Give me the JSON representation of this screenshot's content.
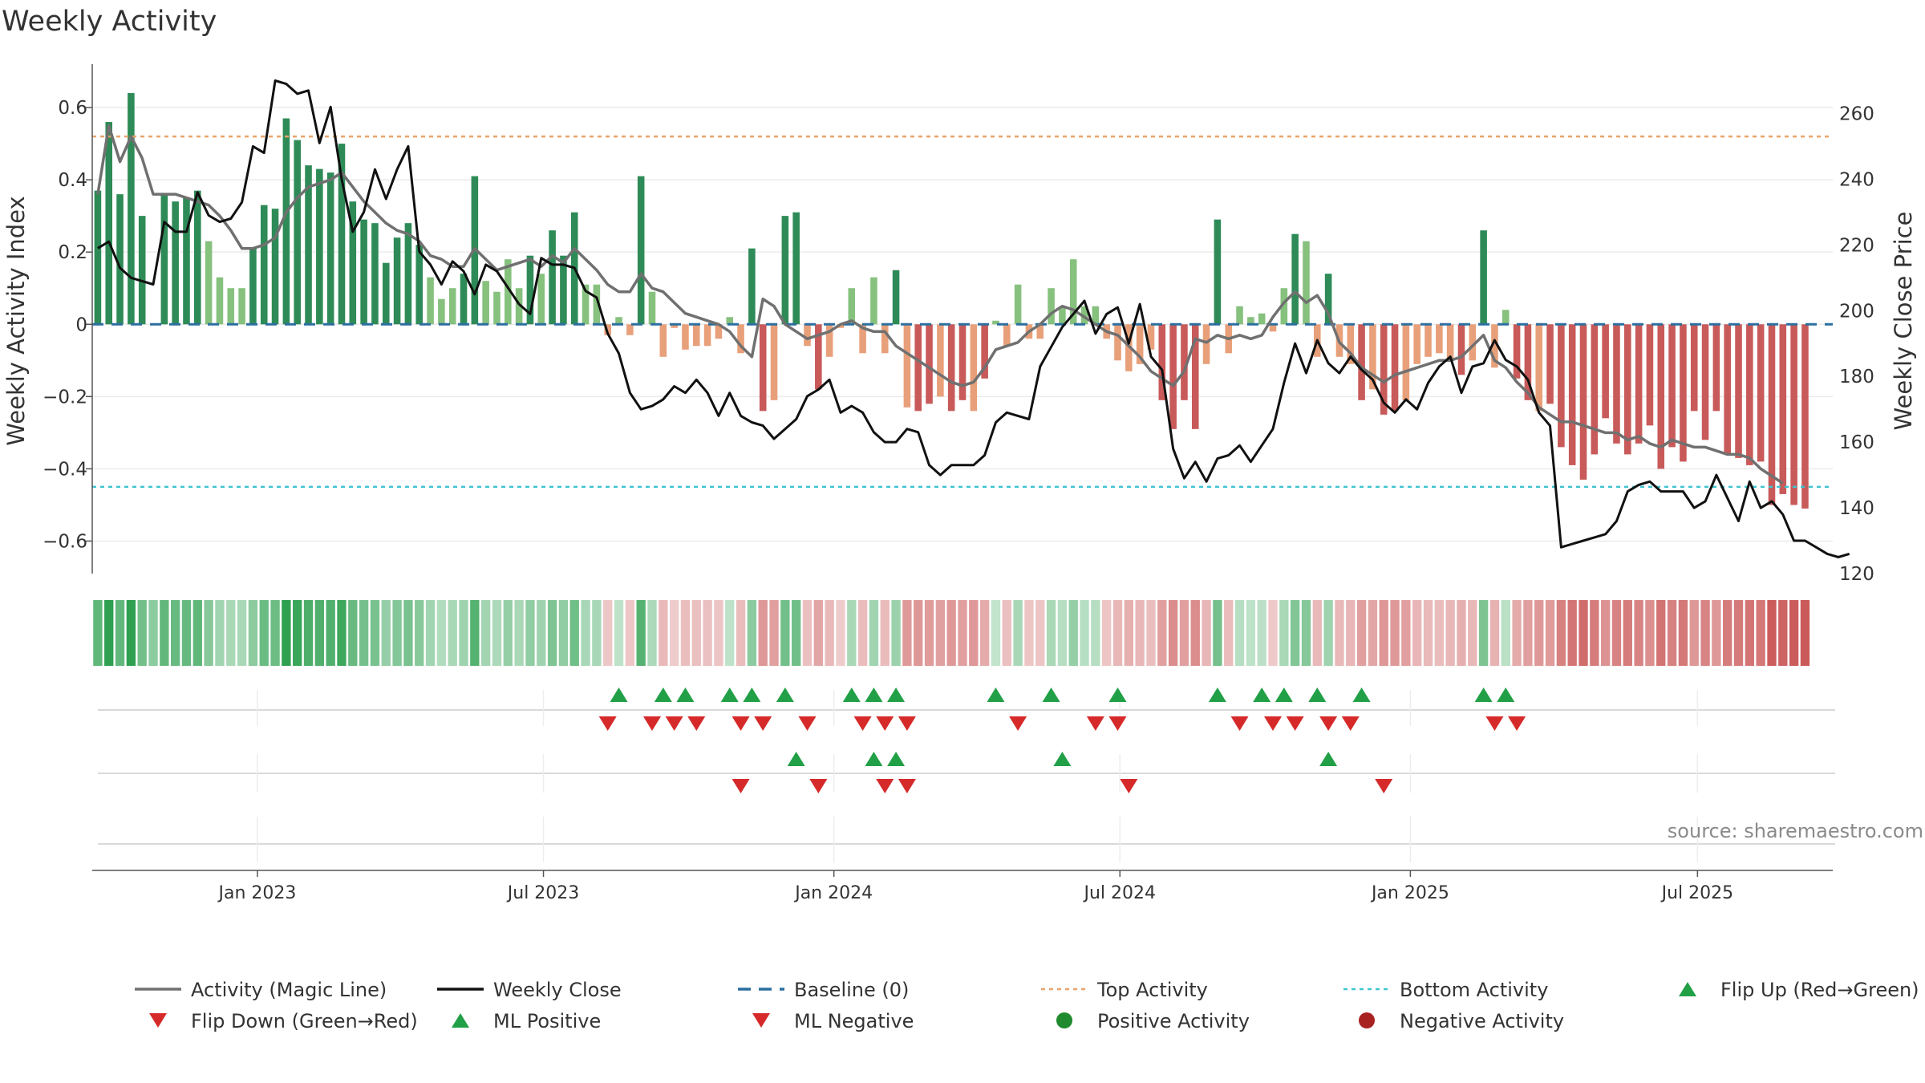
{
  "chart_data": {
    "type": "bar",
    "title": "Weekly Activity",
    "ylabel": "Weekly Activity Index",
    "y2label": "Weekly Close Price",
    "ylim": [
      -0.69,
      0.72
    ],
    "y2lim": [
      120,
      275
    ],
    "yticks": [
      -0.6,
      -0.4,
      -0.2,
      0,
      0.2,
      0.4,
      0.6
    ],
    "y2ticks": [
      120,
      140,
      160,
      180,
      200,
      220,
      240,
      260
    ],
    "xticks": [
      {
        "label": "Jan 2023",
        "week": 14.4
      },
      {
        "label": "Jul 2023",
        "week": 40.2
      },
      {
        "label": "Jan 2024",
        "week": 66.4
      },
      {
        "label": "Jul 2024",
        "week": 92.2
      },
      {
        "label": "Jan 2025",
        "week": 118.4
      },
      {
        "label": "Jul 2025",
        "week": 144.3
      }
    ],
    "week_range": [
      -0.5,
      156.5
    ],
    "top_activity": 0.52,
    "bottom_activity": -0.45,
    "baseline": 0,
    "activity": [
      0.37,
      0.56,
      0.36,
      0.64,
      0.3,
      0,
      0.36,
      0.34,
      0.35,
      0.37,
      0.23,
      0.13,
      0.1,
      0.1,
      0.21,
      0.33,
      0.32,
      0.57,
      0.51,
      0.44,
      0.43,
      0.42,
      0.5,
      0.34,
      0.29,
      0.28,
      0.17,
      0.24,
      0.28,
      0.22,
      0.13,
      0.07,
      0.1,
      0.14,
      0.41,
      0.12,
      0.09,
      0.18,
      0.1,
      0.19,
      0.14,
      0.26,
      0.19,
      0.31,
      0.11,
      0.11,
      -0.03,
      0.02,
      -0.03,
      0.41,
      0.09,
      -0.09,
      -0.01,
      -0.07,
      -0.06,
      -0.06,
      -0.04,
      0.02,
      -0.08,
      0.21,
      -0.24,
      -0.21,
      0.3,
      0.31,
      -0.06,
      -0.18,
      -0.09,
      -0.01,
      0.1,
      -0.08,
      0.13,
      -0.08,
      0.15,
      -0.23,
      -0.24,
      -0.22,
      -0.2,
      -0.24,
      -0.21,
      -0.24,
      -0.15,
      0.01,
      -0.06,
      0.11,
      -0.04,
      -0.04,
      0.1,
      0.05,
      0.18,
      0.05,
      0.05,
      -0.04,
      -0.1,
      -0.13,
      -0.11,
      -0.07,
      -0.21,
      -0.29,
      -0.21,
      -0.29,
      -0.11,
      0.29,
      -0.08,
      0.05,
      0.02,
      0.03,
      -0.02,
      0.1,
      0.25,
      0.23,
      -0.09,
      0.14,
      -0.09,
      -0.11,
      -0.21,
      -0.18,
      -0.25,
      -0.24,
      -0.21,
      -0.11,
      -0.09,
      -0.08,
      -0.1,
      -0.14,
      -0.1,
      0.26,
      -0.12,
      0.04,
      -0.15,
      -0.21,
      -0.24,
      -0.22,
      -0.34,
      -0.39,
      -0.43,
      -0.36,
      -0.26,
      -0.33,
      -0.36,
      -0.33,
      -0.28,
      -0.4,
      -0.34,
      -0.38,
      -0.24,
      -0.32,
      -0.24,
      -0.36,
      -0.37,
      -0.39,
      -0.38,
      -0.5,
      -0.47,
      -0.5,
      -0.51
    ],
    "magic_line": [
      0.36,
      0.55,
      0.45,
      0.52,
      0.46,
      0.36,
      0.36,
      0.36,
      0.35,
      0.34,
      0.33,
      0.3,
      0.26,
      0.21,
      0.21,
      0.22,
      0.24,
      0.31,
      0.35,
      0.38,
      0.39,
      0.4,
      0.42,
      0.38,
      0.34,
      0.31,
      0.28,
      0.26,
      0.25,
      0.23,
      0.19,
      0.18,
      0.16,
      0.16,
      0.21,
      0.18,
      0.15,
      0.16,
      0.17,
      0.18,
      0.16,
      0.19,
      0.17,
      0.21,
      0.18,
      0.15,
      0.11,
      0.09,
      0.09,
      0.14,
      0.1,
      0.09,
      0.06,
      0.03,
      0.02,
      0.01,
      0.0,
      -0.02,
      -0.06,
      -0.09,
      0.07,
      0.05,
      0.0,
      -0.02,
      -0.04,
      -0.03,
      -0.02,
      0.0,
      0.01,
      -0.01,
      -0.02,
      -0.02,
      -0.06,
      -0.08,
      -0.1,
      -0.12,
      -0.14,
      -0.16,
      -0.17,
      -0.16,
      -0.12,
      -0.07,
      -0.06,
      -0.05,
      -0.02,
      0.0,
      0.03,
      0.05,
      0.04,
      0.02,
      0.0,
      -0.02,
      -0.03,
      -0.06,
      -0.09,
      -0.13,
      -0.15,
      -0.17,
      -0.13,
      -0.04,
      -0.05,
      -0.03,
      -0.04,
      -0.03,
      -0.04,
      -0.03,
      0.02,
      0.06,
      0.09,
      0.06,
      0.08,
      0.03,
      -0.05,
      -0.08,
      -0.12,
      -0.14,
      -0.16,
      -0.14,
      -0.13,
      -0.12,
      -0.11,
      -0.1,
      -0.1,
      -0.09,
      -0.06,
      -0.03,
      -0.1,
      -0.12,
      -0.16,
      -0.19,
      -0.23,
      -0.25,
      -0.27,
      -0.27,
      -0.28,
      -0.29,
      -0.3,
      -0.3,
      -0.32,
      -0.31,
      -0.33,
      -0.34,
      -0.32,
      -0.33,
      -0.34,
      -0.34,
      -0.35,
      -0.36,
      -0.36,
      -0.37,
      -0.4,
      -0.42,
      -0.44
    ],
    "weekly_close": [
      219,
      221,
      213,
      210,
      209,
      208,
      227,
      224,
      224,
      236,
      229,
      227,
      228,
      233,
      250,
      248,
      270,
      269,
      266,
      267,
      251,
      262,
      240,
      224,
      230,
      243,
      234,
      243,
      250,
      218,
      214,
      208,
      215,
      212,
      205,
      214,
      212,
      207,
      202,
      199,
      216,
      214,
      214,
      213,
      206,
      204,
      193,
      187,
      175,
      170,
      171,
      173,
      177,
      175,
      179,
      175,
      168,
      175,
      168,
      166,
      165,
      161,
      164,
      167,
      174,
      176,
      179,
      169,
      171,
      169,
      163,
      160,
      160,
      164,
      163,
      153,
      150,
      153,
      153,
      153,
      156,
      166,
      169,
      168,
      167,
      183,
      189,
      195,
      199,
      203,
      193,
      199,
      201,
      190,
      202,
      186,
      182,
      158,
      149,
      154,
      148,
      155,
      156,
      159,
      154,
      159,
      164,
      178,
      190,
      181,
      191,
      184,
      181,
      186,
      182,
      179,
      172,
      169,
      173,
      170,
      178,
      183,
      186,
      175,
      183,
      184,
      191,
      185,
      183,
      179,
      169,
      165,
      128,
      129,
      130,
      131,
      132,
      136,
      145,
      147,
      148,
      145,
      145,
      145,
      140,
      142,
      150,
      143,
      136,
      148,
      140,
      142,
      138,
      130,
      130,
      128,
      126,
      125,
      126
    ],
    "fill_strip": "weekly activity heat strip (green = positive, red = negative)",
    "flip_up_weeks": [
      47,
      51,
      53,
      57,
      59,
      62,
      68,
      70,
      72,
      81,
      86,
      92,
      101,
      105,
      107,
      110,
      114,
      125,
      127
    ],
    "flip_down_weeks": [
      46,
      50,
      52,
      54,
      58,
      60,
      64,
      69,
      71,
      73,
      83,
      90,
      92,
      103,
      106,
      108,
      111,
      113,
      126,
      128
    ],
    "ml_positive_weeks": [
      63,
      70,
      72,
      87,
      111
    ],
    "ml_negative_weeks": [
      58,
      65,
      71,
      73,
      93,
      116
    ],
    "source": "source: sharemaestro.com",
    "legend": [
      {
        "label": "Activity (Magic Line)",
        "kind": "line",
        "color": "#707070"
      },
      {
        "label": "Weekly Close",
        "kind": "line",
        "color": "#111111"
      },
      {
        "label": "Baseline (0)",
        "kind": "dash",
        "color": "#2b6fa0"
      },
      {
        "label": "Top Activity",
        "kind": "dot",
        "color": "#e8a36a"
      },
      {
        "label": "Bottom Activity",
        "kind": "dot",
        "color": "#3cc6cf"
      },
      {
        "label": "Flip Up (Red→Green)",
        "kind": "up",
        "color": "#22a047"
      },
      {
        "label": "Flip Down (Green→Red)",
        "kind": "down",
        "color": "#d62a2a"
      },
      {
        "label": "ML Positive",
        "kind": "up",
        "color": "#22a047"
      },
      {
        "label": "ML Negative",
        "kind": "down",
        "color": "#d62a2a"
      },
      {
        "label": "Positive Activity",
        "kind": "circle",
        "color": "#1f8a2e"
      },
      {
        "label": "Negative Activity",
        "kind": "circle",
        "color": "#a82222"
      }
    ],
    "colors": {
      "pos_strong": "#2e8b57",
      "pos_light": "#86c17e",
      "neg_strong": "#c85a5a",
      "neg_light": "#e8a07a",
      "baseline": "#2b6fa0",
      "top": "#e8a36a",
      "bottom": "#3cc6cf",
      "up": "#22a047",
      "down": "#d62a2a",
      "magic": "#707070",
      "close": "#111111"
    }
  }
}
